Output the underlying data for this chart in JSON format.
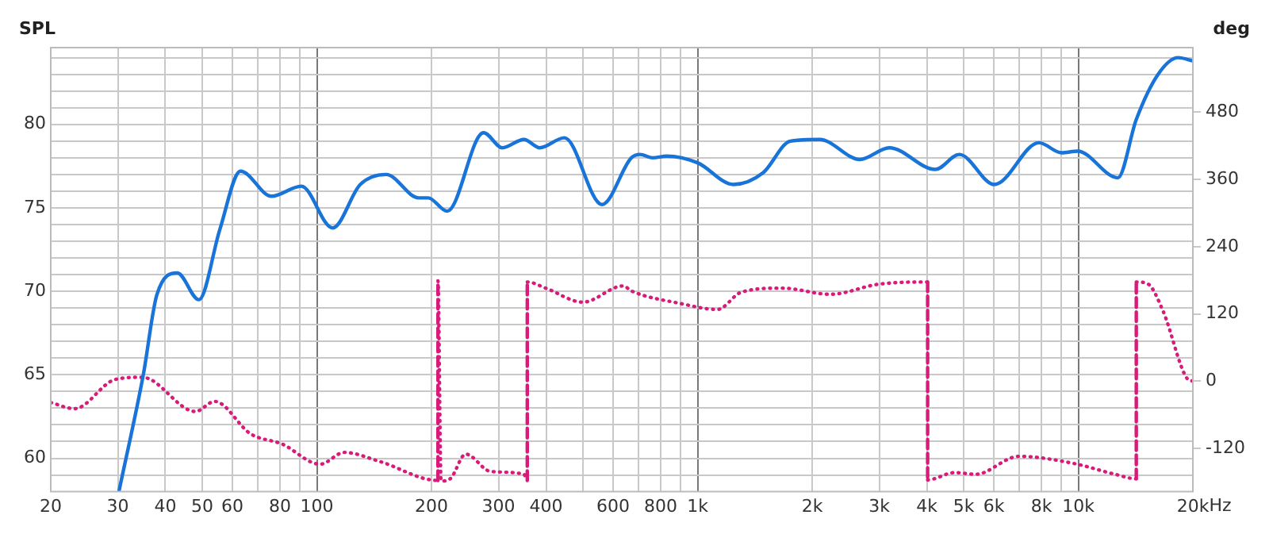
{
  "chart_data": {
    "type": "line",
    "ylabel": "SPL",
    "y2label": "deg",
    "xlabel": "Hz",
    "xlim": [
      20,
      20000
    ],
    "log": "x",
    "xticks": [
      20,
      30,
      40,
      50,
      60,
      {
        "value": 70,
        "label": null
      },
      80,
      {
        "value": 90,
        "label": null
      },
      100,
      200,
      300,
      400,
      {
        "value": 500,
        "label": null
      },
      600,
      {
        "value": 700,
        "label": null
      },
      800,
      {
        "value": 900,
        "label": null
      },
      {
        "value": 1000,
        "label": "1k"
      },
      {
        "value": 2000,
        "label": "2k"
      },
      {
        "value": 3000,
        "label": "3k"
      },
      {
        "value": 4000,
        "label": "4k"
      },
      {
        "value": 5000,
        "label": "5k"
      },
      {
        "value": 6000,
        "label": "6k"
      },
      {
        "value": 7000,
        "label": null
      },
      {
        "value": 8000,
        "label": "8k"
      },
      {
        "value": 9000,
        "label": null
      },
      {
        "value": 10000,
        "label": "10k"
      },
      {
        "value": 20000,
        "label": "20k"
      }
    ],
    "ylim": [
      58,
      84.6
    ],
    "yticks": [
      {
        "value": 59,
        "label": null
      },
      60,
      {
        "value": 61,
        "label": null
      },
      {
        "value": 62,
        "label": null
      },
      {
        "value": 63,
        "label": null
      },
      {
        "value": 64,
        "label": null
      },
      65,
      {
        "value": 66,
        "label": null
      },
      {
        "value": 67,
        "label": null
      },
      {
        "value": 68,
        "label": null
      },
      {
        "value": 69,
        "label": null
      },
      70,
      {
        "value": 71,
        "label": null
      },
      {
        "value": 72,
        "label": null
      },
      {
        "value": 73,
        "label": null
      },
      {
        "value": 74,
        "label": null
      },
      75,
      {
        "value": 76,
        "label": null
      },
      {
        "value": 77,
        "label": null
      },
      {
        "value": 78,
        "label": null
      },
      {
        "value": 79,
        "label": null
      },
      80,
      {
        "value": 81,
        "label": null
      },
      {
        "value": 82,
        "label": null
      },
      {
        "value": 83,
        "label": null
      },
      {
        "value": 84,
        "label": null
      }
    ],
    "y2lim": [
      -197,
      595
    ],
    "y2ticks": [
      -120,
      0,
      120,
      240,
      360,
      480
    ],
    "grid": true,
    "legend": false,
    "marker": "none",
    "series": [
      {
        "color": "#1874d8",
        "line_style": "solid",
        "x": [
          30.2,
          35,
          38,
          43,
          49,
          55.6,
          63,
          76,
          91,
          110,
          130,
          152,
          185,
          196,
          220,
          274,
          307,
          350,
          385,
          447,
          561,
          670,
          706,
          762,
          829,
          1000,
          1242,
          1486,
          1752,
          2092,
          2668,
          3188,
          4212,
          4870,
          6020,
          7880,
          9040,
          9960,
          12700,
          14200,
          16200,
          18300,
          20000
        ],
        "values": [
          58,
          65,
          69.8,
          71.1,
          69.5,
          73.7,
          77.2,
          75.7,
          76.3,
          73.8,
          76.4,
          77,
          75.6,
          75.6,
          74.8,
          79.5,
          78.6,
          79.1,
          78.6,
          79.2,
          75.2,
          78,
          78.2,
          78,
          78.1,
          77.7,
          76.4,
          77.1,
          79,
          79.1,
          77.9,
          78.6,
          77.3,
          78.2,
          76.4,
          78.9,
          78.3,
          78.4,
          76.8,
          80.3,
          83,
          84,
          83.8
        ]
      },
      {
        "color": "#d81b7a",
        "line_style": "dotted",
        "axis": "y2",
        "x": [
          20,
          23.1,
          29.5,
          34.8,
          48,
          53.9,
          67,
          81,
          102,
          118,
          146,
          208,
          208,
          212,
          224,
          246,
          286,
          350,
          357,
          357,
          399,
          500,
          638,
          670,
          896,
          1128,
          1304,
          1666,
          2232,
          2988,
          4020,
          4020,
          4732,
          5374,
          6980,
          9620,
          12500,
          14200,
          14200,
          15200,
          16700,
          19300,
          20000
        ],
        "values": [
          -38,
          -49,
          3,
          7,
          -54,
          -36,
          -94,
          -112,
          -148,
          -127,
          -143,
          -177,
          179,
          -178,
          -174,
          -130,
          -161,
          -166,
          -177,
          177,
          166,
          141,
          170,
          161,
          139,
          128,
          159,
          166,
          155,
          173,
          177,
          -176,
          -163,
          -166,
          -134,
          -146,
          -166,
          -174,
          177,
          174,
          125,
          5,
          0
        ]
      }
    ]
  }
}
